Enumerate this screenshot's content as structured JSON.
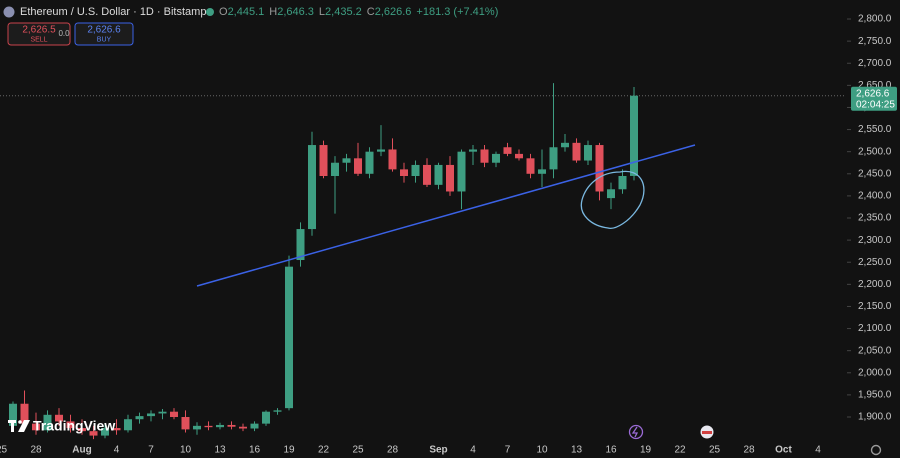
{
  "chart_data": {
    "type": "candlestick",
    "title": "Ethereum / U.S. Dollar · 1D · Bitstamp",
    "ohlc_header": [
      {
        "key": "O",
        "value": "2,445.1"
      },
      {
        "key": "H",
        "value": "2,646.3"
      },
      {
        "key": "L",
        "value": "2,435.2"
      },
      {
        "key": "C",
        "value": "2,626.6"
      }
    ],
    "change": "+181.3 (+7.41%)",
    "sell": {
      "price": "2,626.5",
      "label": "SELL"
    },
    "spread": "0.0",
    "buy": {
      "price": "2,626.6",
      "label": "BUY"
    },
    "last_price": {
      "value": 2626.6,
      "label": "2,626.6"
    },
    "countdown": "02:04:25",
    "brand": "TradingView",
    "up_color": "#3e9e82",
    "down_color": "#e0505b",
    "grid": false,
    "categories": [
      "25",
      null,
      null,
      "28",
      null,
      null,
      null,
      "Aug",
      null,
      null,
      "4",
      null,
      null,
      "7",
      null,
      null,
      "10",
      null,
      null,
      "13",
      null,
      null,
      "16",
      null,
      null,
      "19",
      null,
      null,
      "22",
      null,
      null,
      "25",
      null,
      null,
      "28",
      null,
      null,
      null,
      "Sep",
      null,
      null,
      "4",
      null,
      null,
      "7",
      null,
      null,
      "10",
      null,
      null,
      "13",
      null,
      null,
      "16",
      null,
      null,
      "19",
      null,
      null,
      "22",
      null,
      null,
      "25",
      null,
      null,
      "28",
      null,
      null,
      "Oct",
      null,
      null,
      "4"
    ],
    "open": [
      null,
      1880,
      1930,
      1885,
      1870,
      1905,
      1890,
      1875,
      1868,
      1858,
      1875,
      1870,
      1895,
      1902,
      1908,
      1912,
      1900,
      1872,
      1880,
      1877,
      1882,
      1878,
      1874,
      1885,
      1912,
      1920,
      2255,
      2325,
      2515,
      2445,
      2475,
      2485,
      2450,
      2500,
      2505,
      2460,
      2445,
      2470,
      2425,
      2470,
      2410,
      2500,
      2505,
      2475,
      2510,
      2495,
      2485,
      2450,
      2460,
      2510,
      2520,
      2480,
      2515,
      2395,
      2415,
      2445.1,
      null,
      null,
      null,
      null,
      null,
      null,
      null,
      null,
      null,
      null,
      null,
      null,
      null,
      null,
      null,
      null
    ],
    "high": [
      null,
      1935,
      1960,
      1910,
      1915,
      1920,
      1905,
      1895,
      1880,
      1885,
      1895,
      1905,
      1910,
      1915,
      1918,
      1920,
      1915,
      1888,
      1890,
      1887,
      1890,
      1885,
      1890,
      1915,
      1920,
      2265,
      2340,
      2545,
      2525,
      2490,
      2495,
      2520,
      2510,
      2560,
      2530,
      2475,
      2480,
      2485,
      2475,
      2490,
      2505,
      2515,
      2515,
      2500,
      2520,
      2505,
      2495,
      2505,
      2655,
      2540,
      2530,
      2525,
      2520,
      2430,
      2460,
      2646.3,
      null,
      null,
      null,
      null,
      null,
      null,
      null,
      null,
      null,
      null,
      null,
      null,
      null,
      null,
      null,
      null
    ],
    "low": [
      null,
      1870,
      1870,
      1860,
      1865,
      1880,
      1865,
      1860,
      1850,
      1852,
      1860,
      1865,
      1885,
      1890,
      1895,
      1895,
      1865,
      1860,
      1870,
      1872,
      1872,
      1868,
      1868,
      1880,
      1905,
      1915,
      2240,
      2310,
      2440,
      2360,
      2455,
      2445,
      2440,
      2490,
      2455,
      2430,
      2430,
      2420,
      2415,
      2400,
      2370,
      2470,
      2465,
      2465,
      2490,
      2480,
      2440,
      2420,
      2440,
      2500,
      2475,
      2470,
      2390,
      2370,
      2405,
      2435.2,
      null,
      null,
      null,
      null,
      null,
      null,
      null,
      null,
      null,
      null,
      null,
      null,
      null,
      null,
      null,
      null
    ],
    "close": [
      null,
      1930,
      1885,
      1870,
      1905,
      1890,
      1875,
      1868,
      1858,
      1875,
      1870,
      1895,
      1902,
      1908,
      1912,
      1900,
      1872,
      1880,
      1877,
      1882,
      1878,
      1874,
      1885,
      1912,
      1915,
      2240,
      2325,
      2515,
      2445,
      2475,
      2485,
      2450,
      2500,
      2505,
      2460,
      2445,
      2470,
      2425,
      2470,
      2410,
      2500,
      2505,
      2475,
      2495,
      2495,
      2485,
      2450,
      2460,
      2510,
      2520,
      2480,
      2515,
      2410,
      2415,
      2445,
      2626.6,
      null,
      null,
      null,
      null,
      null,
      null,
      null,
      null,
      null,
      null,
      null,
      null,
      null,
      null,
      null,
      null
    ],
    "ylim": [
      1848,
      2843
    ],
    "yticks": [
      {
        "value": 1900,
        "label": "1,900.0"
      },
      {
        "value": 1950,
        "label": "1,950.0"
      },
      {
        "value": 2000,
        "label": "2,000.0"
      },
      {
        "value": 2050,
        "label": "2,050.0"
      },
      {
        "value": 2100,
        "label": "2,100.0"
      },
      {
        "value": 2150,
        "label": "2,150.0"
      },
      {
        "value": 2200,
        "label": "2,200.0"
      },
      {
        "value": 2250,
        "label": "2,250.0"
      },
      {
        "value": 2300,
        "label": "2,300.0"
      },
      {
        "value": 2350,
        "label": "2,350.0"
      },
      {
        "value": 2400,
        "label": "2,400.0"
      },
      {
        "value": 2450,
        "label": "2,450.0"
      },
      {
        "value": 2500,
        "label": "2,500.0"
      },
      {
        "value": 2550,
        "label": "2,550.0"
      },
      {
        "value": 2600,
        "label": "2,600.0"
      },
      {
        "value": 2650,
        "label": "2,650.0"
      },
      {
        "value": 2700,
        "label": "2,700.0"
      },
      {
        "value": 2750,
        "label": "2,750.0"
      },
      {
        "value": 2800,
        "label": "2,800.0"
      }
    ]
  }
}
